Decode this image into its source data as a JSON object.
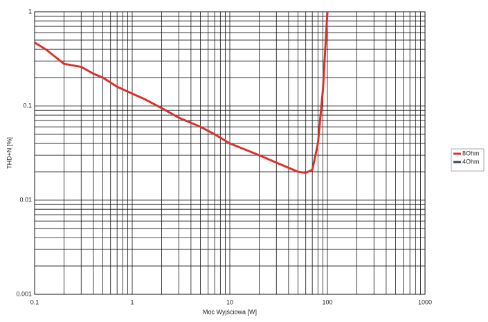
{
  "chart_data": {
    "type": "line",
    "x_label": "Moc Wyjściowa [W]",
    "y_label": "THD+N [%]",
    "x": [
      0.1,
      0.13,
      0.2,
      0.3,
      0.4,
      0.5,
      0.7,
      1,
      1.3,
      2,
      3,
      5,
      7,
      10,
      20,
      30,
      50,
      60,
      70,
      80,
      90,
      100
    ],
    "series": [
      {
        "name": "8Ohm",
        "color": "#d9312b",
        "values": [
          0.47,
          0.4,
          0.28,
          0.26,
          0.22,
          0.2,
          0.16,
          0.135,
          0.12,
          0.095,
          0.075,
          0.06,
          0.05,
          0.04,
          0.03,
          0.025,
          0.02,
          0.0195,
          0.021,
          0.04,
          0.15,
          1
        ]
      },
      {
        "name": "4Ohm",
        "color": "#3a4250",
        "values": [
          null,
          null,
          null,
          null,
          null,
          null,
          null,
          null,
          null,
          null,
          null,
          null,
          null,
          null,
          null,
          null,
          null,
          null,
          null,
          null,
          null,
          null
        ]
      }
    ],
    "xlim": [
      0.1,
      1000
    ],
    "ylim": [
      0.001,
      1
    ],
    "xticks": [
      0.1,
      1,
      10,
      100,
      1000
    ],
    "yticks": [
      0.001,
      0.01,
      0.1,
      1
    ],
    "xscale": "log",
    "yscale": "log",
    "grid": true,
    "minor_grid": true,
    "legend": "right"
  }
}
